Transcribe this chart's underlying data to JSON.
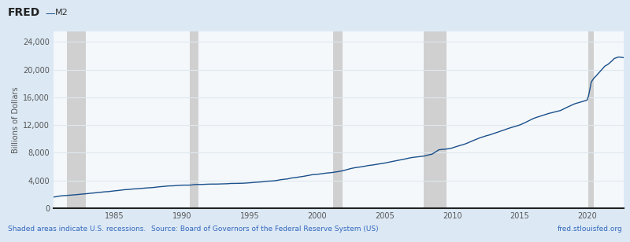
{
  "title": "M2",
  "ylabel": "Billions of Dollars",
  "outer_bg": "#dce9f5",
  "plot_bg": "#f4f8fb",
  "line_color": "#1a4f8a",
  "line_width": 1.0,
  "yticks": [
    0,
    4000,
    8000,
    12000,
    16000,
    20000,
    24000
  ],
  "xticks": [
    1985,
    1990,
    1995,
    2000,
    2005,
    2010,
    2015,
    2020
  ],
  "ylim": [
    0,
    25500
  ],
  "xlim_start": 1980.5,
  "xlim_end": 2022.7,
  "recession_bands": [
    [
      1981.5,
      1982.9
    ],
    [
      1990.6,
      1991.2
    ],
    [
      2001.2,
      2001.9
    ],
    [
      2007.9,
      2009.6
    ],
    [
      2020.1,
      2020.5
    ]
  ],
  "recession_color": "#d0d0d0",
  "footer_left": "Shaded areas indicate U.S. recessions.",
  "footer_mid": "Source: Board of Governors of the Federal Reserve System (US)",
  "footer_right": "fred.stlouisfed.org",
  "footer_color": "#3366bb",
  "grid_color": "#e0e8ee",
  "spine_color": "#222222",
  "tick_color": "#555555"
}
